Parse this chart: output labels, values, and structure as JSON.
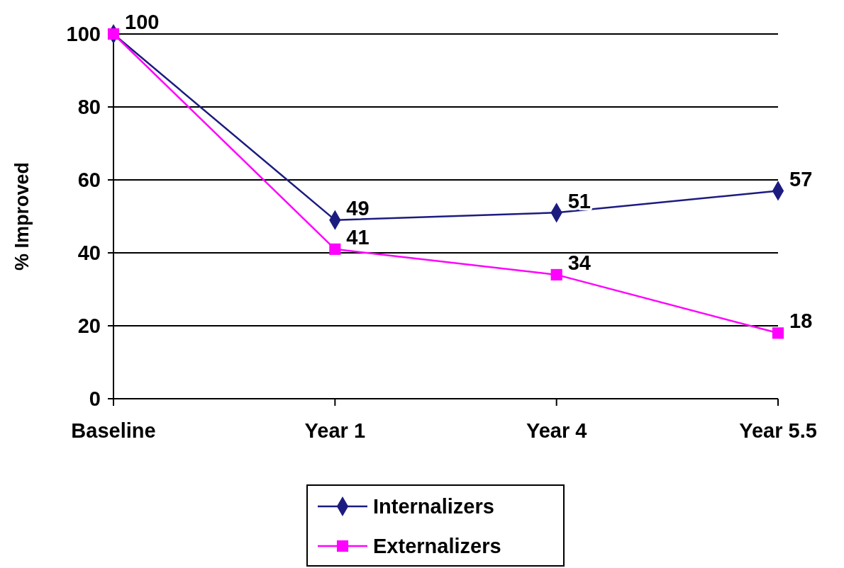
{
  "chart_data": {
    "type": "line",
    "ylabel": "% Improved",
    "categories": [
      "Baseline",
      "Year 1",
      "Year 4",
      "Year 5.5"
    ],
    "series": [
      {
        "name": "Internalizers",
        "color": "#1c1c80",
        "marker": "diamond",
        "values": [
          100,
          49,
          51,
          57
        ],
        "value_labels": [
          "100",
          "49",
          "51",
          "57"
        ]
      },
      {
        "name": "Externalizers",
        "color": "#ff00ff",
        "marker": "square",
        "values": [
          100,
          41,
          34,
          18
        ],
        "value_labels": [
          null,
          "41",
          "34",
          "18"
        ]
      }
    ],
    "ylim": [
      0,
      100
    ],
    "yticks": [
      0,
      20,
      40,
      60,
      80,
      100
    ],
    "grid": "y",
    "legend": "bottom"
  }
}
